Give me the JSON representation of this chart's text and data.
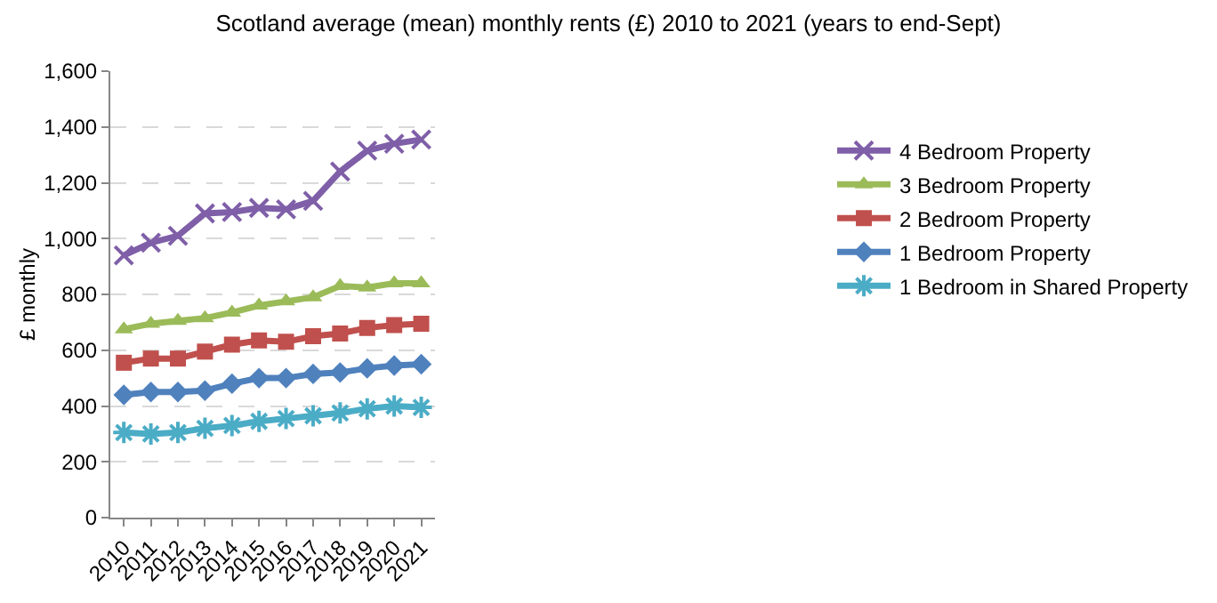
{
  "chart_data": {
    "type": "line",
    "title": "Scotland average (mean) monthly rents (£) 2010 to 2021 (years to end-Sept)",
    "ylabel": "£ monthly",
    "categories": [
      "2010",
      "2011",
      "2012",
      "2013",
      "2014",
      "2015",
      "2016",
      "2017",
      "2018",
      "2019",
      "2020",
      "2021"
    ],
    "series": [
      {
        "name": "4 Bedroom Property",
        "color": "#7f5fa8",
        "marker": "cross",
        "values": [
          940,
          985,
          1010,
          1090,
          1095,
          1110,
          1105,
          1135,
          1240,
          1315,
          1340,
          1355
        ]
      },
      {
        "name": "3 Bedroom Property",
        "color": "#9bbb59",
        "marker": "triangle",
        "values": [
          675,
          695,
          705,
          715,
          735,
          760,
          775,
          790,
          830,
          825,
          840,
          840
        ]
      },
      {
        "name": "2 Bedroom Property",
        "color": "#c0504d",
        "marker": "square",
        "values": [
          555,
          570,
          570,
          595,
          620,
          635,
          630,
          650,
          660,
          680,
          690,
          695
        ]
      },
      {
        "name": "1 Bedroom Property",
        "color": "#4f81bd",
        "marker": "diamond",
        "values": [
          440,
          450,
          450,
          455,
          480,
          500,
          500,
          515,
          520,
          535,
          545,
          550
        ]
      },
      {
        "name": "1 Bedroom in Shared Property",
        "color": "#4bacc6",
        "marker": "cross",
        "values": [
          305,
          300,
          305,
          320,
          330,
          345,
          355,
          365,
          375,
          390,
          400,
          395
        ]
      }
    ],
    "ylim": [
      0,
      1600
    ],
    "yticks": [
      {
        "value": 0,
        "label": "0"
      },
      {
        "value": 200,
        "label": "200"
      },
      {
        "value": 400,
        "label": "400"
      },
      {
        "value": 600,
        "label": "600"
      },
      {
        "value": 800,
        "label": "800"
      },
      {
        "value": 1000,
        "label": "1,000"
      },
      {
        "value": 1200,
        "label": "1,200"
      },
      {
        "value": 1400,
        "label": "1,400"
      },
      {
        "value": 1600,
        "label": "1,600"
      }
    ],
    "grid": "y",
    "legend": "right",
    "line_style": "solid"
  }
}
